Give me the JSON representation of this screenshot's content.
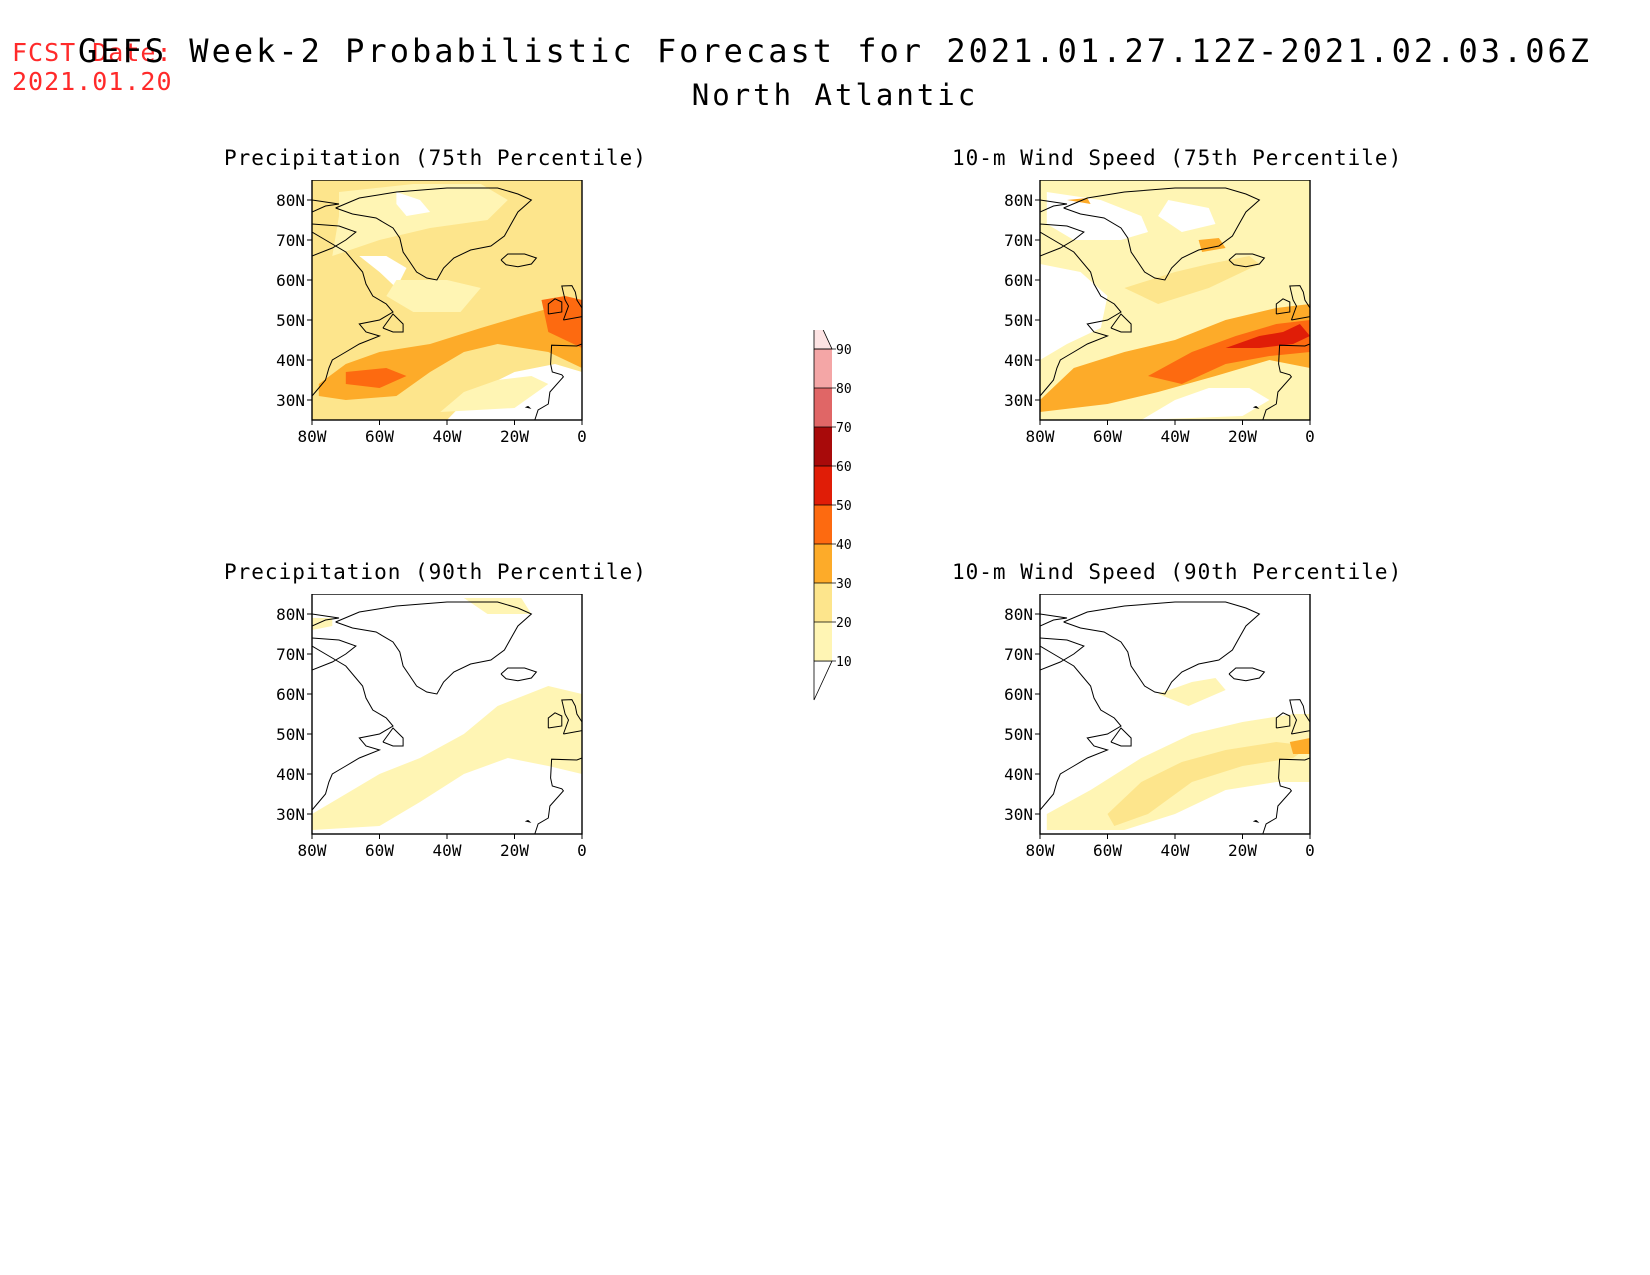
{
  "header": {
    "fcst_label": "FCST Date:",
    "fcst_date": "2021.01.20",
    "title": "GEFS Week-2 Probabilistic Forecast for 2021.01.27.12Z-2021.02.03.06Z",
    "subtitle": "North Atlantic"
  },
  "axes": {
    "lat_labels": [
      "80N",
      "70N",
      "60N",
      "50N",
      "40N",
      "30N"
    ],
    "lon_labels": [
      "80W",
      "60W",
      "40W",
      "20W",
      "0"
    ],
    "lat_range": [
      25,
      85
    ],
    "lon_range": [
      -80,
      0
    ]
  },
  "panels": [
    {
      "id": "precip-75",
      "title": "Precipitation (75th Percentile)"
    },
    {
      "id": "wind-75",
      "title": "10-m Wind Speed (75th Percentile)"
    },
    {
      "id": "precip-90",
      "title": "Precipitation (90th Percentile)"
    },
    {
      "id": "wind-90",
      "title": "10-m Wind Speed (90th Percentile)"
    }
  ],
  "colorbar": {
    "levels": [
      "10",
      "20",
      "30",
      "40",
      "50",
      "60",
      "70",
      "80",
      "90"
    ],
    "colors": [
      "#ffffff",
      "#fff5b4",
      "#fde58c",
      "#fdab29",
      "#fd6a10",
      "#e01d07",
      "#a80a0a",
      "#e06666",
      "#f4a6a6",
      "#fde3e3"
    ]
  }
}
